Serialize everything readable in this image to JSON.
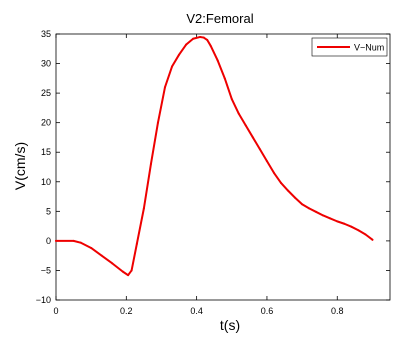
{
  "chart_data": {
    "type": "line",
    "title": "V2:Femoral",
    "xlabel": "t(s)",
    "ylabel": "V(cm/s)",
    "xlim": [
      0,
      0.95
    ],
    "ylim": [
      -10,
      35
    ],
    "xticks": [
      0,
      0.2,
      0.4,
      0.6,
      0.8
    ],
    "xtick_labels": [
      "0",
      "0.2",
      "0.4",
      "0.6",
      "0.8"
    ],
    "yticks": [
      -10,
      -5,
      0,
      5,
      10,
      15,
      20,
      25,
      30,
      35
    ],
    "ytick_labels": [
      "−10",
      "−5",
      "0",
      "5",
      "10",
      "15",
      "20",
      "25",
      "30",
      "35"
    ],
    "grid": false,
    "legend_position": "top-right",
    "series": [
      {
        "name": "V−Num",
        "color": "#ee0000",
        "x": [
          0,
          0.05,
          0.07,
          0.1,
          0.13,
          0.16,
          0.19,
          0.205,
          0.215,
          0.23,
          0.25,
          0.27,
          0.29,
          0.31,
          0.33,
          0.35,
          0.37,
          0.39,
          0.41,
          0.42,
          0.43,
          0.44,
          0.46,
          0.48,
          0.5,
          0.52,
          0.54,
          0.56,
          0.58,
          0.6,
          0.62,
          0.64,
          0.66,
          0.68,
          0.7,
          0.72,
          0.74,
          0.76,
          0.78,
          0.8,
          0.82,
          0.84,
          0.86,
          0.88,
          0.9
        ],
        "y": [
          0,
          0,
          -0.3,
          -1.2,
          -2.5,
          -3.8,
          -5.2,
          -5.8,
          -5,
          -0.5,
          5.5,
          13,
          20,
          26,
          29.5,
          31.5,
          33.2,
          34.2,
          34.5,
          34.4,
          34,
          33,
          30.5,
          27.5,
          24,
          21.5,
          19.5,
          17.5,
          15.5,
          13.5,
          11.5,
          9.8,
          8.5,
          7.3,
          6.2,
          5.5,
          4.9,
          4.3,
          3.8,
          3.3,
          2.9,
          2.4,
          1.8,
          1.1,
          0.2
        ]
      }
    ]
  }
}
